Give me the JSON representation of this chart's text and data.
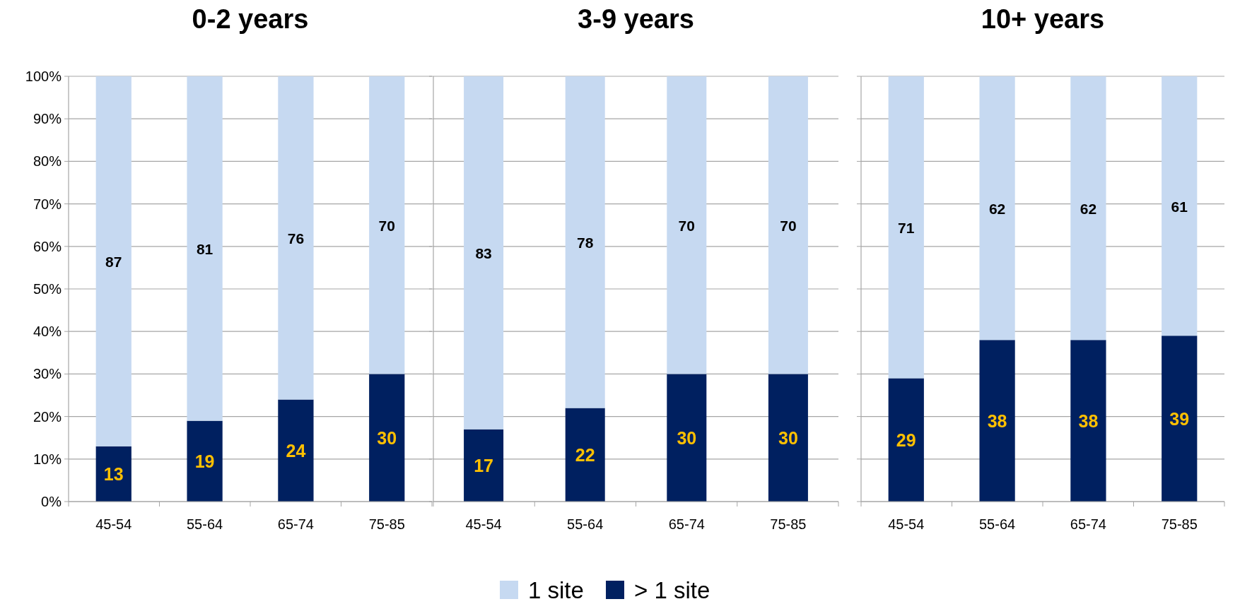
{
  "chart_data": [
    {
      "type": "bar",
      "title": "0-2 years",
      "categories": [
        "45-54",
        "55-64",
        "65-74",
        "75-85"
      ],
      "stacked": true,
      "data_labels": true,
      "grid": "y",
      "legend": "bottom",
      "ylim": [
        0,
        100
      ],
      "yticks": [
        {
          "value": 0,
          "label": "0%"
        },
        {
          "value": 10,
          "label": "10%"
        },
        {
          "value": 20,
          "label": "20%"
        },
        {
          "value": 30,
          "label": "30%"
        },
        {
          "value": 40,
          "label": "40%"
        },
        {
          "value": 50,
          "label": "50%"
        },
        {
          "value": 60,
          "label": "60%"
        },
        {
          "value": 70,
          "label": "70%"
        },
        {
          "value": 80,
          "label": "80%"
        },
        {
          "value": 90,
          "label": "90%"
        },
        {
          "value": 100,
          "label": "100%"
        }
      ],
      "series": [
        {
          "name": "> 1 site",
          "color": "#002060",
          "values": [
            13,
            19,
            24,
            30
          ]
        },
        {
          "name": "1 site",
          "color": "#c6d9f1",
          "values": [
            87,
            81,
            76,
            70
          ]
        }
      ]
    },
    {
      "type": "bar",
      "title": "3-9 years",
      "categories": [
        "45-54",
        "55-64",
        "65-74",
        "75-85"
      ],
      "stacked": true,
      "data_labels": true,
      "grid": "y",
      "tick_labels": "x",
      "ylim": [
        0,
        100
      ],
      "yticks": [
        0,
        10,
        20,
        30,
        40,
        50,
        60,
        70,
        80,
        90,
        100
      ],
      "series": [
        {
          "color": "#002060",
          "values": [
            17,
            22,
            30,
            30
          ]
        },
        {
          "color": "#c6d9f1",
          "values": [
            83,
            78,
            70,
            70
          ]
        }
      ]
    },
    {
      "type": "bar",
      "title": "10+ years",
      "categories": [
        "45-54",
        "55-64",
        "65-74",
        "75-85"
      ],
      "stacked": true,
      "data_labels": true,
      "grid": "y",
      "tick_labels": "x",
      "ylim": [
        0,
        100
      ],
      "yticks": [
        0,
        10,
        20,
        30,
        40,
        50,
        60,
        70,
        80,
        90,
        100
      ],
      "series": [
        {
          "color": "#002060",
          "values": [
            29,
            38,
            38,
            39
          ]
        },
        {
          "color": "#c6d9f1",
          "values": [
            71,
            62,
            62,
            61
          ]
        }
      ]
    }
  ]
}
